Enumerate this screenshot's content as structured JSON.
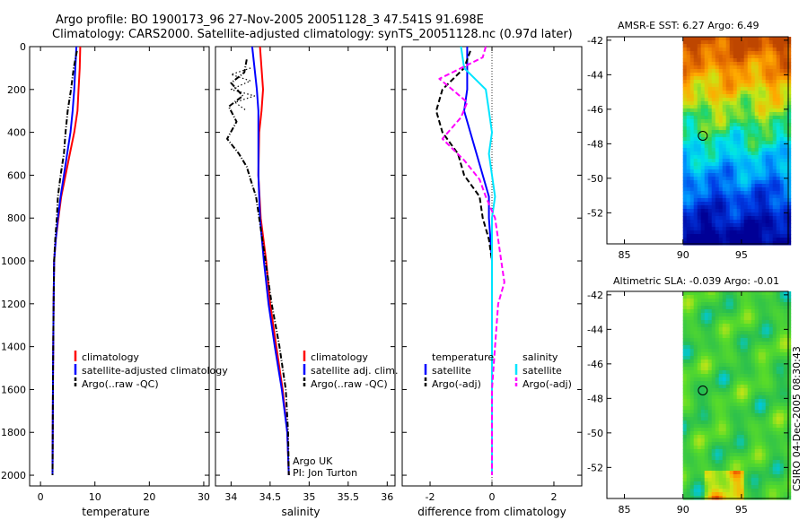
{
  "header": {
    "title_line1": "Argo profile: BO 1900173_96 27-Nov-2005 20051128_3 47.541S 91.698E",
    "title_line2": "Climatology: CARS2000. Satellite-adjusted climatology: synTS_20051128.nc (0.97d later)"
  },
  "footer": {
    "stamp": "CSIRO 04-Dec-2005 08:30:43"
  },
  "colors": {
    "climatology": "#ff0000",
    "satellite": "#0000ff",
    "argo": "#000000",
    "sat_diff": "#00e5ff",
    "argo_diff": "#ff00ff"
  },
  "chart_data": [
    {
      "id": "temperature",
      "type": "line",
      "xlabel": "temperature",
      "ylabel": "",
      "xlim": [
        -2,
        31
      ],
      "ylim": [
        2050,
        0
      ],
      "xticks": [
        0,
        10,
        20,
        30
      ],
      "yticks": [
        0,
        200,
        400,
        600,
        800,
        1000,
        1200,
        1400,
        1600,
        1800,
        2000
      ],
      "legend": [
        "climatology",
        "satellite-adjusted climatology",
        "Argo(..raw -QC)"
      ],
      "series": [
        {
          "name": "climatology",
          "style": "solid",
          "color": "#ff0000",
          "points": [
            [
              7.3,
              0
            ],
            [
              7.2,
              100
            ],
            [
              7.0,
              200
            ],
            [
              6.8,
              300
            ],
            [
              6.2,
              400
            ],
            [
              5.4,
              500
            ],
            [
              4.6,
              600
            ],
            [
              3.8,
              700
            ],
            [
              3.3,
              800
            ],
            [
              2.8,
              900
            ],
            [
              2.5,
              1000
            ],
            [
              2.4,
              1200
            ],
            [
              2.3,
              1500
            ],
            [
              2.2,
              2000
            ]
          ]
        },
        {
          "name": "satellite",
          "style": "solid",
          "color": "#0000ff",
          "points": [
            [
              6.6,
              0
            ],
            [
              6.4,
              100
            ],
            [
              6.2,
              200
            ],
            [
              5.9,
              300
            ],
            [
              5.5,
              400
            ],
            [
              4.9,
              500
            ],
            [
              4.3,
              600
            ],
            [
              3.7,
              700
            ],
            [
              3.2,
              800
            ],
            [
              2.8,
              900
            ],
            [
              2.5,
              1000
            ],
            [
              2.4,
              1200
            ],
            [
              2.3,
              1500
            ],
            [
              2.2,
              2000
            ]
          ]
        },
        {
          "name": "argo",
          "style": "dash-dot",
          "color": "#000000",
          "points": [
            [
              6.7,
              20
            ],
            [
              6.1,
              100
            ],
            [
              5.6,
              200
            ],
            [
              5.0,
              300
            ],
            [
              4.6,
              400
            ],
            [
              4.3,
              500
            ],
            [
              3.7,
              600
            ],
            [
              3.2,
              700
            ],
            [
              3.0,
              800
            ],
            [
              2.7,
              900
            ],
            [
              2.5,
              1000
            ],
            [
              2.4,
              1200
            ],
            [
              2.3,
              1500
            ],
            [
              2.2,
              2000
            ]
          ]
        }
      ]
    },
    {
      "id": "salinity",
      "type": "line",
      "xlabel": "salinity",
      "ylabel": "",
      "xlim": [
        33.8,
        36.1
      ],
      "ylim": [
        2050,
        0
      ],
      "xticks": [
        34,
        34.5,
        35,
        35.5,
        36
      ],
      "xticklabels": [
        "34",
        "34.5",
        "35",
        "35.5",
        "36"
      ],
      "yticks": [
        0,
        200,
        400,
        600,
        800,
        1000,
        1200,
        1400,
        1600,
        1800,
        2000
      ],
      "legend": [
        "climatology",
        "satellite adj. clim.",
        "Argo(..raw -QC)"
      ],
      "annotation_line1": "Argo UK",
      "annotation_line2": "PI: Jon Turton",
      "series": [
        {
          "name": "climatology",
          "style": "solid",
          "color": "#ff0000",
          "points": [
            [
              34.37,
              0
            ],
            [
              34.39,
              100
            ],
            [
              34.41,
              200
            ],
            [
              34.39,
              300
            ],
            [
              34.36,
              400
            ],
            [
              34.35,
              600
            ],
            [
              34.38,
              800
            ],
            [
              34.45,
              1000
            ],
            [
              34.5,
              1200
            ],
            [
              34.58,
              1400
            ],
            [
              34.66,
              1600
            ],
            [
              34.72,
              1800
            ],
            [
              34.74,
              2000
            ]
          ]
        },
        {
          "name": "satellite",
          "style": "solid",
          "color": "#0000ff",
          "points": [
            [
              34.27,
              0
            ],
            [
              34.3,
              100
            ],
            [
              34.33,
              200
            ],
            [
              34.35,
              300
            ],
            [
              34.35,
              400
            ],
            [
              34.35,
              600
            ],
            [
              34.37,
              800
            ],
            [
              34.42,
              1000
            ],
            [
              34.48,
              1200
            ],
            [
              34.56,
              1400
            ],
            [
              34.65,
              1600
            ],
            [
              34.72,
              1800
            ],
            [
              34.74,
              2000
            ]
          ]
        },
        {
          "name": "argo",
          "style": "dash-dot",
          "color": "#000000",
          "points": [
            [
              34.2,
              60
            ],
            [
              34.17,
              120
            ],
            [
              34.0,
              170
            ],
            [
              34.15,
              230
            ],
            [
              33.97,
              280
            ],
            [
              34.07,
              350
            ],
            [
              33.95,
              430
            ],
            [
              34.1,
              500
            ],
            [
              34.2,
              560
            ],
            [
              34.25,
              620
            ],
            [
              34.32,
              700
            ],
            [
              34.36,
              800
            ],
            [
              34.44,
              1000
            ],
            [
              34.52,
              1200
            ],
            [
              34.62,
              1400
            ],
            [
              34.7,
              1600
            ],
            [
              34.73,
              1800
            ],
            [
              34.74,
              2000
            ]
          ]
        },
        {
          "name": "argo-raw",
          "style": "dotted",
          "color": "#000000",
          "points": [
            [
              34.25,
              100
            ],
            [
              34.0,
              130
            ],
            [
              34.25,
              160
            ],
            [
              34.0,
              200
            ],
            [
              34.3,
              230
            ],
            [
              34.05,
              260
            ],
            [
              34.2,
              300
            ]
          ]
        }
      ]
    },
    {
      "id": "difference",
      "type": "line",
      "xlabel": "difference from climatology",
      "ylabel": "",
      "xlim": [
        -2.9,
        2.9
      ],
      "ylim": [
        2050,
        0
      ],
      "xticks": [
        -2,
        0,
        2
      ],
      "yticks": [
        0,
        200,
        400,
        600,
        800,
        1000,
        1200,
        1400,
        1600,
        1800,
        2000
      ],
      "legend_temperature_title": "temperature",
      "legend_salinity_title": "salinity",
      "legend_temperature": [
        "satellite",
        "Argo(-adj)"
      ],
      "legend_salinity": [
        "satellite",
        "Argo(-adj)"
      ],
      "series": [
        {
          "name": "temp-satellite",
          "style": "solid",
          "color": "#0000ff",
          "points": [
            [
              -0.8,
              0
            ],
            [
              -0.8,
              100
            ],
            [
              -0.8,
              200
            ],
            [
              -0.9,
              300
            ],
            [
              -0.7,
              400
            ],
            [
              -0.5,
              500
            ],
            [
              -0.3,
              600
            ],
            [
              -0.1,
              700
            ],
            [
              -0.1,
              800
            ],
            [
              0.0,
              1000
            ],
            [
              0.0,
              1500
            ],
            [
              0.0,
              2000
            ]
          ]
        },
        {
          "name": "temp-argo",
          "style": "dashed",
          "color": "#000000",
          "points": [
            [
              -0.7,
              20
            ],
            [
              -0.9,
              100
            ],
            [
              -1.6,
              200
            ],
            [
              -1.8,
              300
            ],
            [
              -1.6,
              400
            ],
            [
              -1.1,
              500
            ],
            [
              -0.9,
              600
            ],
            [
              -0.4,
              700
            ],
            [
              -0.3,
              800
            ],
            [
              -0.1,
              900
            ],
            [
              0.0,
              1000
            ],
            [
              0.0,
              1500
            ],
            [
              0.0,
              2000
            ]
          ]
        },
        {
          "name": "sal-satellite",
          "style": "solid",
          "color": "#00e5ff",
          "points": [
            [
              -1.0,
              0
            ],
            [
              -0.9,
              100
            ],
            [
              -0.2,
              200
            ],
            [
              -0.1,
              300
            ],
            [
              0.0,
              400
            ],
            [
              -0.1,
              500
            ],
            [
              0.0,
              600
            ],
            [
              0.1,
              700
            ],
            [
              0.0,
              800
            ],
            [
              0.0,
              1000
            ],
            [
              0.0,
              1500
            ],
            [
              0.0,
              2000
            ]
          ]
        },
        {
          "name": "sal-argo",
          "style": "dashed",
          "color": "#ff00ff",
          "points": [
            [
              -0.2,
              0
            ],
            [
              -0.3,
              50
            ],
            [
              -1.7,
              150
            ],
            [
              -1.2,
              210
            ],
            [
              -0.8,
              260
            ],
            [
              -1.0,
              330
            ],
            [
              -1.6,
              430
            ],
            [
              -0.9,
              530
            ],
            [
              -0.4,
              620
            ],
            [
              -0.2,
              700
            ],
            [
              0.1,
              800
            ],
            [
              0.2,
              900
            ],
            [
              0.3,
              1000
            ],
            [
              0.4,
              1100
            ],
            [
              0.2,
              1200
            ],
            [
              0.1,
              1400
            ],
            [
              0.0,
              1600
            ],
            [
              0.0,
              2000
            ]
          ]
        }
      ]
    }
  ],
  "maps": [
    {
      "id": "sst",
      "title": "AMSR-E SST: 6.27 Argo: 6.49",
      "xlim": [
        83.5,
        99
      ],
      "ylim": [
        -53.8,
        -41.8
      ],
      "xticks": [
        85,
        90,
        95
      ],
      "yticks": [
        -42,
        -44,
        -46,
        -48,
        -50,
        -52
      ],
      "data_west_edge": 90,
      "float": [
        91.698,
        -47.541
      ],
      "field": "sst"
    },
    {
      "id": "sla",
      "title": "Altimetric SLA: -0.039 Argo: -0.01",
      "xlim": [
        83.5,
        99
      ],
      "ylim": [
        -53.8,
        -41.8
      ],
      "xticks": [
        85,
        90,
        95
      ],
      "yticks": [
        -42,
        -44,
        -46,
        -48,
        -50,
        -52
      ],
      "data_west_edge": 90,
      "float": [
        91.698,
        -47.541
      ],
      "field": "sla"
    }
  ]
}
